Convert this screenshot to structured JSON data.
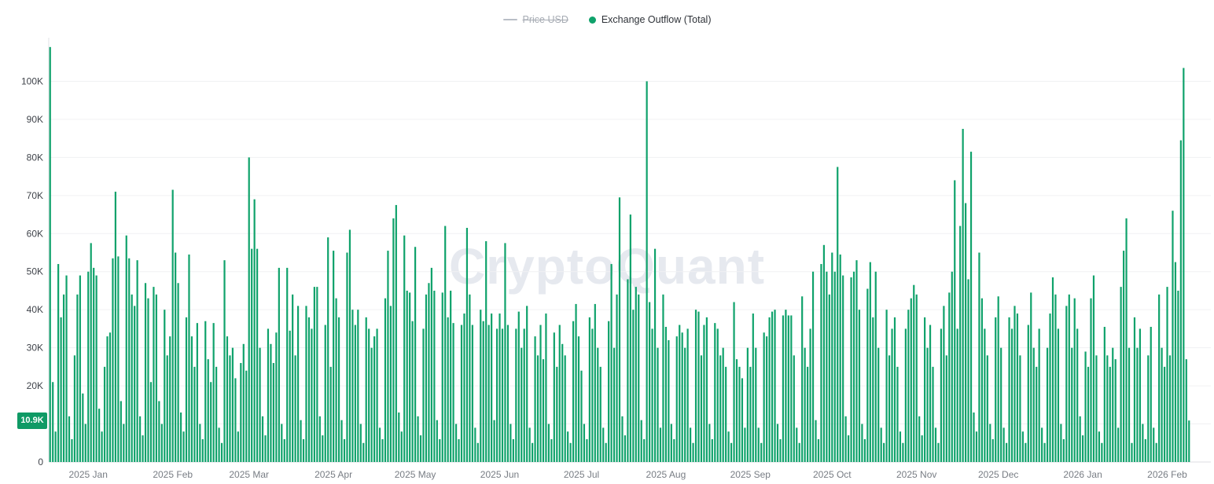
{
  "legend": {
    "items": [
      {
        "label": "Price USD",
        "disabled": true,
        "marker": "line",
        "color": "#b9bec7"
      },
      {
        "label": "Exchange Outflow (Total)",
        "disabled": false,
        "marker": "dot",
        "color": "#0fa26b"
      }
    ]
  },
  "watermark": "CryptoQuant",
  "y_axis": {
    "ticks": [
      {
        "label": "100K",
        "value": 100
      },
      {
        "label": "90K",
        "value": 90
      },
      {
        "label": "80K",
        "value": 80
      },
      {
        "label": "70K",
        "value": 70
      },
      {
        "label": "60K",
        "value": 60
      },
      {
        "label": "50K",
        "value": 50
      },
      {
        "label": "40K",
        "value": 40
      },
      {
        "label": "30K",
        "value": 30
      },
      {
        "label": "20K",
        "value": 20
      },
      {
        "label": "0",
        "value": 0
      }
    ],
    "badge": {
      "label": "10.9K",
      "value": 10.9,
      "color": "#0f9a65"
    }
  },
  "chart_data": {
    "type": "bar",
    "series_name": "Exchange Outflow (Total)",
    "unit": "K coins",
    "bar_color": "#0fa26b",
    "grid": true,
    "legend_position": "top-center",
    "ylim": [
      0,
      110
    ],
    "gridline_values": [
      10,
      20,
      30,
      40,
      50,
      60,
      70,
      80,
      90,
      100
    ],
    "latest_value_k": 10.9,
    "month_labels": [
      {
        "label": "2025 Jan",
        "start_index": 14
      },
      {
        "label": "2025 Feb",
        "start_index": 45
      },
      {
        "label": "2025 Mar",
        "start_index": 73
      },
      {
        "label": "2025 Apr",
        "start_index": 104
      },
      {
        "label": "2025 May",
        "start_index": 134
      },
      {
        "label": "2025 Jun",
        "start_index": 165
      },
      {
        "label": "2025 Jul",
        "start_index": 195
      },
      {
        "label": "2025 Aug",
        "start_index": 226
      },
      {
        "label": "2025 Sep",
        "start_index": 257
      },
      {
        "label": "2025 Oct",
        "start_index": 287
      },
      {
        "label": "2025 Nov",
        "start_index": 318
      },
      {
        "label": "2025 Dec",
        "start_index": 348
      },
      {
        "label": "2026 Jan",
        "start_index": 379
      },
      {
        "label": "2026 Feb",
        "start_index": 410
      }
    ],
    "values_k": [
      109,
      21,
      8,
      52,
      38,
      44,
      49,
      12,
      6,
      28,
      44,
      49,
      18,
      10,
      50,
      57.5,
      51,
      49,
      14,
      8,
      25,
      33,
      34,
      53.5,
      71,
      54,
      16,
      10,
      59.5,
      53.5,
      44,
      41,
      53,
      12,
      7,
      47,
      43,
      21,
      46,
      44,
      16,
      10,
      40,
      28,
      33,
      71.5,
      55,
      47,
      13,
      8,
      38,
      54.5,
      33,
      25,
      36.5,
      10,
      6,
      37,
      27,
      21,
      36.5,
      25,
      9,
      5,
      53,
      33,
      28,
      30,
      22,
      8,
      26,
      31,
      24,
      80,
      56,
      69,
      56,
      30,
      12,
      7,
      35,
      31,
      26,
      34,
      51,
      10,
      6,
      51,
      34.5,
      44,
      28,
      41,
      11,
      6,
      41,
      38,
      35,
      46,
      46,
      12,
      7,
      36,
      59,
      25,
      55.5,
      43,
      38,
      11,
      6,
      55,
      61,
      40,
      36,
      40,
      10,
      5,
      38,
      35,
      30,
      33,
      35,
      9,
      6,
      43,
      55.5,
      41,
      64,
      67.5,
      13,
      8,
      59.5,
      45,
      44.5,
      37,
      56.5,
      12,
      7,
      35,
      44,
      47,
      51,
      45,
      11,
      6,
      44.5,
      62,
      38,
      45,
      36.5,
      10,
      6,
      36,
      39,
      61.5,
      44,
      36,
      9,
      5,
      40,
      37,
      58,
      36,
      39,
      11,
      35,
      39,
      35,
      57.5,
      36,
      10,
      6,
      35,
      39.5,
      30,
      35,
      41,
      9,
      5,
      33,
      28,
      36,
      27,
      39,
      10,
      6,
      34,
      25,
      36,
      31,
      28,
      8,
      5,
      37,
      41.5,
      33,
      24,
      10,
      6,
      38,
      35,
      41.5,
      30,
      25,
      9,
      5,
      37,
      52,
      30,
      44,
      69.5,
      12,
      7,
      48,
      65,
      40,
      46,
      44,
      11,
      6,
      100,
      42,
      35,
      56,
      30,
      9,
      44,
      35.5,
      32,
      10,
      6,
      33,
      36,
      34,
      30,
      35,
      9,
      5,
      40,
      39.5,
      28,
      36,
      38,
      10,
      6,
      36.5,
      35,
      28,
      30,
      25,
      8,
      5,
      42,
      27,
      25,
      22,
      9,
      30,
      25,
      39,
      30,
      9,
      5,
      34,
      33,
      38,
      39.5,
      40,
      10,
      6,
      38.5,
      40,
      38.5,
      38.5,
      28,
      9,
      5,
      43.5,
      30,
      25,
      35,
      50,
      11,
      6,
      52,
      57,
      50,
      44,
      55,
      50,
      77.5,
      54.5,
      49,
      12,
      7,
      48.5,
      50,
      53,
      40,
      10,
      6,
      45.5,
      52.5,
      38,
      50,
      30,
      9,
      5,
      40,
      28,
      35,
      38,
      25,
      8,
      5,
      35,
      40,
      43,
      46.5,
      44,
      12,
      7,
      38,
      30,
      36,
      25,
      9,
      5,
      35,
      41,
      28,
      44.5,
      50,
      74,
      35,
      62,
      87.5,
      68,
      48,
      81.5,
      13,
      8,
      55,
      43,
      35,
      28,
      10,
      6,
      38,
      43.5,
      30,
      9,
      5,
      38,
      35,
      41,
      39,
      28,
      8,
      5,
      36,
      44.5,
      30,
      25,
      35,
      9,
      5,
      30,
      39,
      48.5,
      44,
      35,
      10,
      6,
      41,
      44,
      30,
      43,
      35,
      12,
      7,
      29,
      25,
      43,
      49,
      28,
      8,
      5,
      35.5,
      28,
      25,
      30,
      27,
      9,
      46,
      55.5,
      64,
      30,
      5,
      38,
      30,
      35,
      10,
      6,
      28,
      35.5,
      9,
      5,
      44,
      30,
      25,
      46,
      28,
      66,
      52.5,
      45,
      84.5,
      103.5,
      27,
      10.9
    ]
  }
}
